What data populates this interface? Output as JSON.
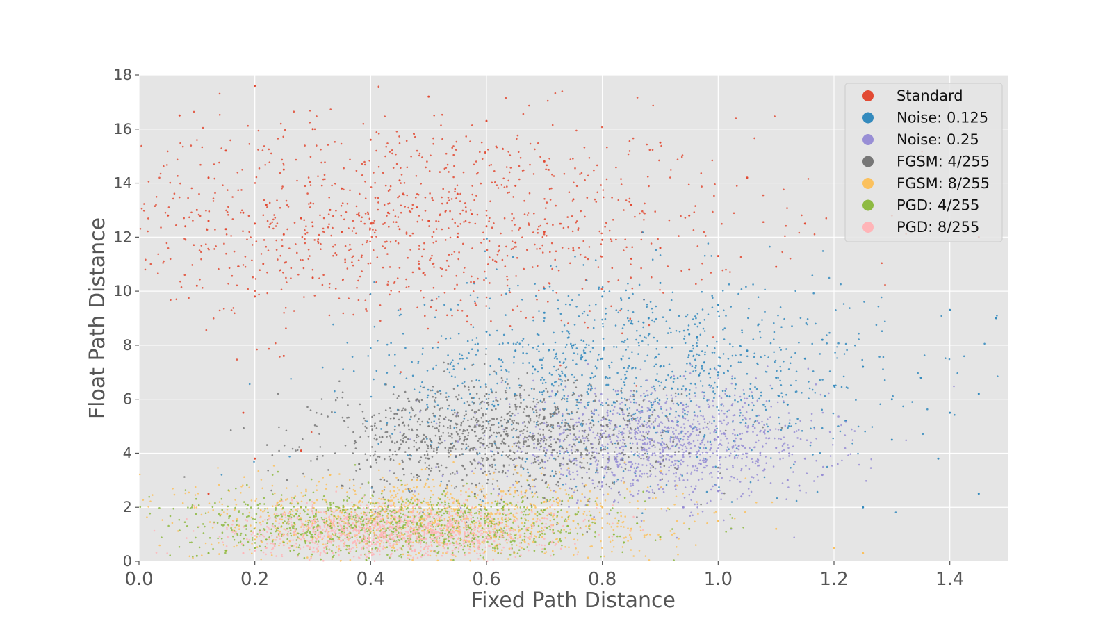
{
  "chart_data": {
    "type": "scatter",
    "title": "",
    "xlabel": "Fixed Path Distance",
    "ylabel": "Float Path Distance",
    "xlim": [
      0.0,
      1.5
    ],
    "ylim": [
      0,
      18
    ],
    "x_ticks": [
      0.0,
      0.2,
      0.4,
      0.6,
      0.8,
      1.0,
      1.2,
      1.4
    ],
    "x_tick_labels": [
      "0.0",
      "0.2",
      "0.4",
      "0.6",
      "0.8",
      "1.0",
      "1.2",
      "1.4"
    ],
    "y_ticks": [
      0,
      2,
      4,
      6,
      8,
      10,
      12,
      14,
      16,
      18
    ],
    "y_tick_labels": [
      "0",
      "2",
      "4",
      "6",
      "8",
      "10",
      "12",
      "14",
      "16",
      "18"
    ],
    "grid": true,
    "legend_position": "top-right",
    "plot_background": "#e5e5e5",
    "series": [
      {
        "name": "Standard",
        "color": "#e24a33",
        "cluster": {
          "x_center": 0.45,
          "y_center": 12.5,
          "x_spread": 0.3,
          "y_spread": 2.0
        },
        "points": [
          [
            0.05,
            12.8
          ],
          [
            0.08,
            12.4
          ],
          [
            0.1,
            13.0
          ],
          [
            0.12,
            12.6
          ],
          [
            0.15,
            12.3
          ],
          [
            0.18,
            12.9
          ],
          [
            0.2,
            12.5
          ],
          [
            0.22,
            13.2
          ],
          [
            0.25,
            12.1
          ],
          [
            0.28,
            12.7
          ],
          [
            0.3,
            12.4
          ],
          [
            0.33,
            13.0
          ],
          [
            0.35,
            12.2
          ],
          [
            0.38,
            12.8
          ],
          [
            0.4,
            12.5
          ],
          [
            0.43,
            12.9
          ],
          [
            0.45,
            12.3
          ],
          [
            0.48,
            13.1
          ],
          [
            0.5,
            12.6
          ],
          [
            0.55,
            12.0
          ],
          [
            0.6,
            12.4
          ],
          [
            0.65,
            11.8
          ],
          [
            0.7,
            12.2
          ],
          [
            0.75,
            11.5
          ],
          [
            0.8,
            11.9
          ],
          [
            0.85,
            11.2
          ],
          [
            0.9,
            11.6
          ],
          [
            0.95,
            10.8
          ],
          [
            1.0,
            11.3
          ],
          [
            1.1,
            10.9
          ],
          [
            0.07,
            16.5
          ],
          [
            0.15,
            15.2
          ],
          [
            0.2,
            17.6
          ],
          [
            0.3,
            16.0
          ],
          [
            0.4,
            15.6
          ],
          [
            0.5,
            17.2
          ],
          [
            0.6,
            16.3
          ],
          [
            0.7,
            14.8
          ],
          [
            0.9,
            15.5
          ],
          [
            1.05,
            14.2
          ],
          [
            0.1,
            10.2
          ],
          [
            0.2,
            9.8
          ],
          [
            0.3,
            10.5
          ],
          [
            0.12,
            14.2
          ],
          [
            0.25,
            14.5
          ],
          [
            0.35,
            13.8
          ],
          [
            0.45,
            14.1
          ],
          [
            0.55,
            13.6
          ],
          [
            0.65,
            13.9
          ],
          [
            0.75,
            13.4
          ],
          [
            0.85,
            13.2
          ],
          [
            0.95,
            12.8
          ],
          [
            1.15,
            12.5
          ],
          [
            1.3,
            12.8
          ],
          [
            1.45,
            12.0
          ],
          [
            0.25,
            7.6
          ],
          [
            0.18,
            5.5
          ],
          [
            0.2,
            3.8
          ],
          [
            0.12,
            2.5
          ],
          [
            0.28,
            4.1
          ]
        ]
      },
      {
        "name": "Noise: 0.125",
        "color": "#348abd",
        "cluster": {
          "x_center": 0.85,
          "y_center": 7.0,
          "x_spread": 0.22,
          "y_spread": 1.8
        },
        "points": [
          [
            0.6,
            8.5
          ],
          [
            0.65,
            7.8
          ],
          [
            0.7,
            9.2
          ],
          [
            0.75,
            8.0
          ],
          [
            0.8,
            7.5
          ],
          [
            0.85,
            8.8
          ],
          [
            0.9,
            7.2
          ],
          [
            0.95,
            8.4
          ],
          [
            1.0,
            7.0
          ],
          [
            1.05,
            7.8
          ],
          [
            1.1,
            6.8
          ],
          [
            1.15,
            7.5
          ],
          [
            1.2,
            6.5
          ],
          [
            1.25,
            7.2
          ],
          [
            1.3,
            6.0
          ],
          [
            1.35,
            6.8
          ],
          [
            1.4,
            5.5
          ],
          [
            1.45,
            6.2
          ],
          [
            0.7,
            10.1
          ],
          [
            0.8,
            9.8
          ],
          [
            0.9,
            10.3
          ],
          [
            1.0,
            9.5
          ],
          [
            0.55,
            6.5
          ],
          [
            0.62,
            5.8
          ],
          [
            0.72,
            6.2
          ],
          [
            0.82,
            5.9
          ],
          [
            0.92,
            6.4
          ],
          [
            1.02,
            6.1
          ],
          [
            1.12,
            5.8
          ],
          [
            1.22,
            5.2
          ],
          [
            1.3,
            4.5
          ],
          [
            1.38,
            3.8
          ],
          [
            1.45,
            2.5
          ],
          [
            1.25,
            2.0
          ],
          [
            1.4,
            9.3
          ],
          [
            1.48,
            9.0
          ],
          [
            1.18,
            8.2
          ],
          [
            0.88,
            9.0
          ],
          [
            0.78,
            6.8
          ],
          [
            0.68,
            7.2
          ]
        ]
      },
      {
        "name": "Noise: 0.25",
        "color": "#988ed5",
        "cluster": {
          "x_center": 0.9,
          "y_center": 4.3,
          "x_spread": 0.14,
          "y_spread": 1.0
        },
        "points": [
          [
            0.75,
            4.5
          ],
          [
            0.78,
            3.8
          ],
          [
            0.8,
            5.0
          ],
          [
            0.83,
            4.2
          ],
          [
            0.85,
            3.5
          ],
          [
            0.88,
            4.8
          ],
          [
            0.9,
            4.0
          ],
          [
            0.92,
            5.2
          ],
          [
            0.95,
            4.4
          ],
          [
            0.97,
            3.6
          ],
          [
            1.0,
            4.6
          ],
          [
            1.02,
            3.9
          ],
          [
            1.05,
            4.8
          ],
          [
            1.08,
            3.4
          ],
          [
            1.1,
            4.2
          ],
          [
            1.12,
            3.0
          ],
          [
            1.15,
            3.8
          ],
          [
            0.7,
            3.2
          ],
          [
            0.8,
            2.8
          ],
          [
            0.9,
            3.0
          ],
          [
            1.0,
            2.6
          ],
          [
            0.86,
            5.6
          ],
          [
            0.96,
            5.4
          ],
          [
            0.76,
            5.3
          ],
          [
            1.06,
            5.0
          ],
          [
            0.82,
            2.2
          ],
          [
            0.94,
            2.0
          ],
          [
            1.04,
            2.4
          ],
          [
            1.14,
            2.8
          ],
          [
            1.18,
            3.2
          ]
        ]
      },
      {
        "name": "FGSM: 4/255",
        "color": "#777777",
        "cluster": {
          "x_center": 0.62,
          "y_center": 4.6,
          "x_spread": 0.15,
          "y_spread": 1.0
        },
        "points": [
          [
            0.45,
            4.2
          ],
          [
            0.5,
            5.0
          ],
          [
            0.52,
            4.5
          ],
          [
            0.55,
            5.5
          ],
          [
            0.58,
            4.8
          ],
          [
            0.6,
            5.2
          ],
          [
            0.62,
            4.0
          ],
          [
            0.65,
            5.8
          ],
          [
            0.68,
            4.6
          ],
          [
            0.7,
            5.3
          ],
          [
            0.72,
            4.4
          ],
          [
            0.75,
            5.0
          ],
          [
            0.78,
            3.8
          ],
          [
            0.8,
            4.6
          ],
          [
            0.4,
            3.5
          ],
          [
            0.42,
            4.6
          ],
          [
            0.48,
            3.2
          ],
          [
            0.5,
            3.8
          ],
          [
            0.55,
            6.0
          ],
          [
            0.6,
            6.2
          ],
          [
            0.65,
            3.5
          ],
          [
            0.7,
            3.2
          ],
          [
            0.35,
            2.8
          ],
          [
            0.38,
            3.6
          ],
          [
            0.44,
            5.3
          ],
          [
            0.85,
            4.2
          ],
          [
            0.9,
            3.6
          ],
          [
            0.95,
            4.0
          ],
          [
            0.58,
            2.5
          ],
          [
            0.66,
            6.5
          ]
        ]
      },
      {
        "name": "FGSM: 8/255",
        "color": "#fbc15e",
        "cluster": {
          "x_center": 0.5,
          "y_center": 1.6,
          "x_spread": 0.2,
          "y_spread": 0.8
        },
        "points": [
          [
            0.2,
            0.8
          ],
          [
            0.25,
            1.0
          ],
          [
            0.3,
            1.4
          ],
          [
            0.35,
            1.8
          ],
          [
            0.38,
            2.2
          ],
          [
            0.4,
            1.6
          ],
          [
            0.42,
            2.6
          ],
          [
            0.45,
            1.9
          ],
          [
            0.48,
            3.0
          ],
          [
            0.5,
            2.1
          ],
          [
            0.52,
            2.8
          ],
          [
            0.55,
            1.7
          ],
          [
            0.58,
            2.4
          ],
          [
            0.6,
            3.2
          ],
          [
            0.62,
            1.9
          ],
          [
            0.65,
            2.6
          ],
          [
            0.68,
            1.4
          ],
          [
            0.7,
            2.2
          ],
          [
            0.75,
            1.5
          ],
          [
            0.8,
            2.0
          ],
          [
            0.85,
            1.2
          ],
          [
            0.9,
            0.8
          ],
          [
            1.0,
            1.5
          ],
          [
            1.1,
            1.2
          ],
          [
            1.2,
            0.5
          ],
          [
            1.25,
            0.3
          ],
          [
            0.15,
            0.4
          ],
          [
            0.28,
            2.0
          ],
          [
            0.33,
            3.2
          ],
          [
            0.45,
            3.6
          ]
        ]
      },
      {
        "name": "PGD: 4/255",
        "color": "#8eba42",
        "cluster": {
          "x_center": 0.45,
          "y_center": 1.3,
          "x_spread": 0.18,
          "y_spread": 0.6
        },
        "points": [
          [
            0.15,
            0.4
          ],
          [
            0.18,
            0.6
          ],
          [
            0.2,
            0.5
          ],
          [
            0.22,
            0.8
          ],
          [
            0.25,
            0.7
          ],
          [
            0.28,
            1.0
          ],
          [
            0.3,
            0.9
          ],
          [
            0.33,
            1.3
          ],
          [
            0.35,
            1.1
          ],
          [
            0.38,
            1.6
          ],
          [
            0.4,
            1.4
          ],
          [
            0.42,
            1.9
          ],
          [
            0.45,
            1.5
          ],
          [
            0.48,
            2.1
          ],
          [
            0.5,
            1.7
          ],
          [
            0.52,
            2.3
          ],
          [
            0.55,
            1.8
          ],
          [
            0.58,
            2.4
          ],
          [
            0.6,
            1.9
          ],
          [
            0.63,
            2.2
          ],
          [
            0.66,
            1.6
          ],
          [
            0.7,
            1.9
          ],
          [
            0.74,
            1.3
          ],
          [
            0.78,
            1.7
          ],
          [
            0.82,
            1.0
          ],
          [
            0.86,
            1.4
          ],
          [
            0.9,
            0.9
          ],
          [
            0.1,
            0.2
          ],
          [
            0.12,
            0.3
          ],
          [
            0.95,
            1.2
          ]
        ]
      },
      {
        "name": "PGD: 8/255",
        "color": "#ffb5b8",
        "cluster": {
          "x_center": 0.45,
          "y_center": 1.1,
          "x_spread": 0.13,
          "y_spread": 0.5
        },
        "points": [
          [
            0.25,
            0.6
          ],
          [
            0.28,
            0.8
          ],
          [
            0.3,
            0.7
          ],
          [
            0.33,
            0.9
          ],
          [
            0.35,
            1.0
          ],
          [
            0.38,
            1.1
          ],
          [
            0.4,
            1.2
          ],
          [
            0.42,
            1.0
          ],
          [
            0.45,
            1.3
          ],
          [
            0.48,
            1.1
          ],
          [
            0.5,
            1.4
          ],
          [
            0.52,
            1.2
          ],
          [
            0.55,
            1.5
          ],
          [
            0.58,
            1.3
          ],
          [
            0.6,
            1.6
          ],
          [
            0.62,
            1.4
          ],
          [
            0.65,
            1.5
          ],
          [
            0.68,
            1.3
          ],
          [
            0.7,
            1.6
          ],
          [
            0.22,
            0.5
          ],
          [
            0.2,
            0.4
          ],
          [
            0.18,
            0.3
          ],
          [
            0.36,
            1.4
          ],
          [
            0.44,
            0.8
          ],
          [
            0.54,
            0.9
          ],
          [
            0.64,
            1.0
          ],
          [
            0.32,
            0.5
          ],
          [
            0.46,
            1.7
          ],
          [
            0.56,
            1.8
          ],
          [
            0.66,
            1.8
          ]
        ]
      }
    ]
  }
}
